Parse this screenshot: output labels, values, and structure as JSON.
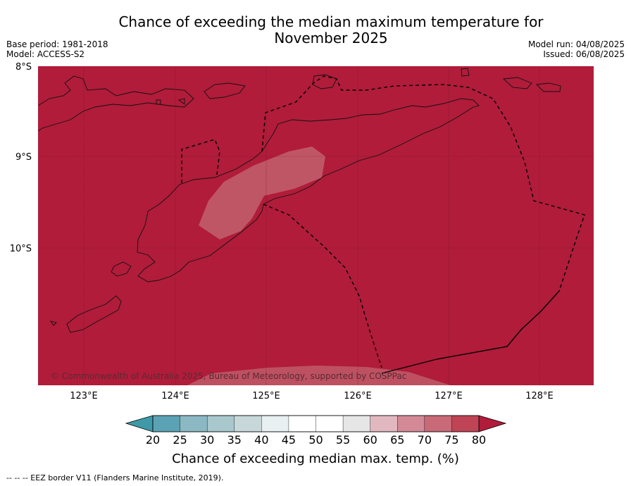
{
  "title_line1": "Chance of exceeding the median maximum temperature for",
  "title_line2": "November 2025",
  "meta_left": [
    "Base period: 1981-2018",
    "Model: ACCESS-S2"
  ],
  "meta_right": [
    "Model run: 04/08/2025",
    "Issued: 06/08/2025"
  ],
  "map": {
    "base_color": "#b01c3a",
    "lat_labels": [
      "8°S",
      "9°S",
      "10°S"
    ],
    "lon_labels": [
      "123°E",
      "124°E",
      "125°E",
      "126°E",
      "127°E",
      "128°E"
    ],
    "copyright": "© Commonwealth of Australia 2025, Bureau of Meteorology, supported by COSPPac"
  },
  "colorbar": {
    "ticks": [
      "20",
      "25",
      "30",
      "35",
      "40",
      "45",
      "50",
      "55",
      "60",
      "65",
      "70",
      "75",
      "80"
    ],
    "colors": [
      "#5ba3b4",
      "#8bb8c3",
      "#a9c8cd",
      "#c8d8da",
      "#e8f0f1",
      "#ffffff",
      "#ffffff",
      "#e6e6e6",
      "#e2b8c0",
      "#d48a96",
      "#c86a78",
      "#bf4456"
    ],
    "low_extend_color": "#3e9aa8",
    "high_extend_color": "#b01c3a",
    "label": "Chance of exceeding median max. temp. (%)"
  },
  "footnote": "--  --  -- EEZ border V11 (Flanders Marine Institute, 2019)."
}
